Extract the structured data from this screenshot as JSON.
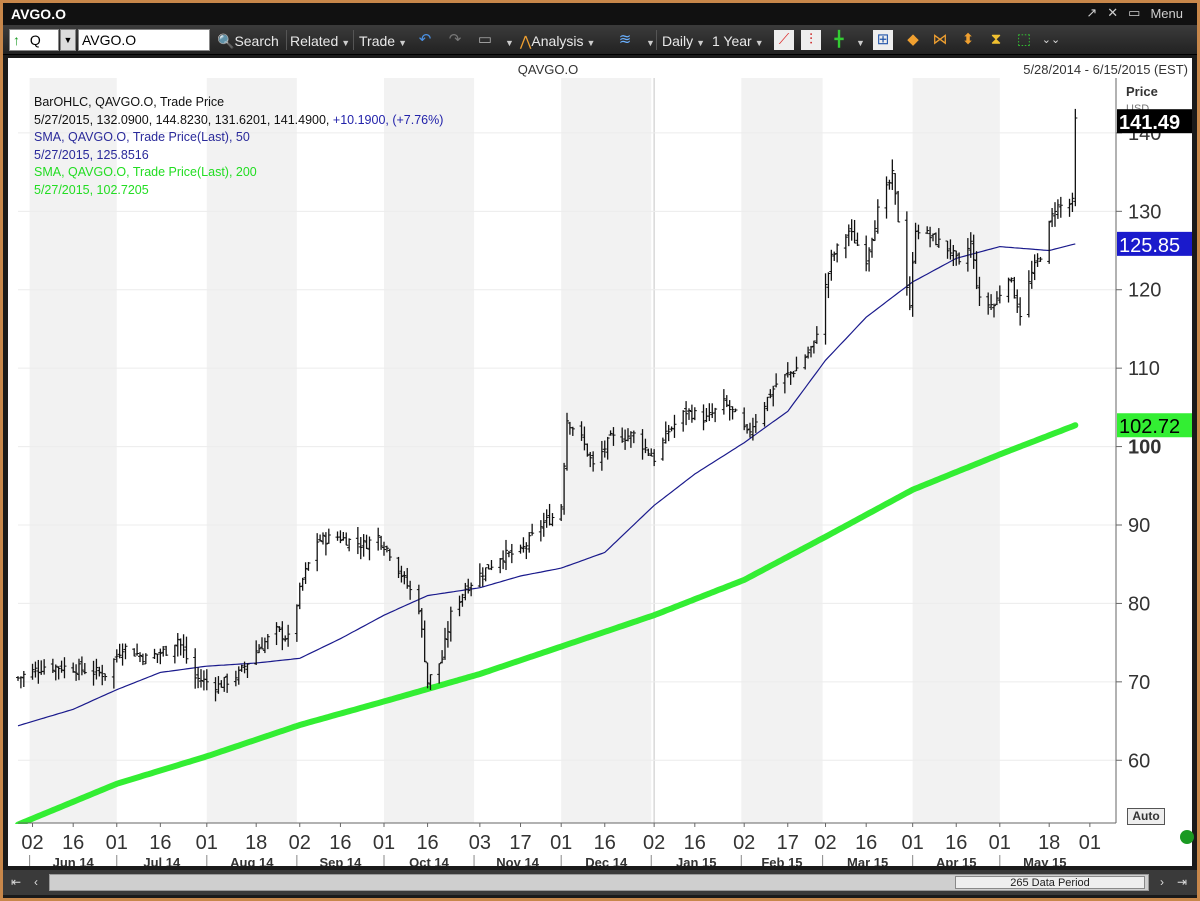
{
  "window": {
    "title": "AVGO.O",
    "controls": {
      "menu_label": "Menu"
    }
  },
  "toolbar": {
    "mode_letter": "Q",
    "symbol_value": "AVGO.O",
    "search_label": "Search",
    "related_label": "Related",
    "trade_label": "Trade",
    "analysis_label": "Analysis",
    "interval_label": "Daily",
    "range_label": "1 Year",
    "icons": [
      "up-arrow-icon",
      "search-icon",
      "undo-icon",
      "redo-icon",
      "folder-icon",
      "analysis-icon",
      "wave-icon",
      "line-chart-icon",
      "candle-chart-icon",
      "crosshair-icon",
      "add-chart-icon",
      "pan-left-right-icon",
      "zoom-in-icon",
      "zoom-out-icon",
      "fit-icon",
      "select-icon",
      "more-icon"
    ]
  },
  "chart_header": {
    "symbol": "QAVGO.O",
    "date_range": "5/28/2014 - 6/15/2015 (EST)"
  },
  "legend": {
    "line1": "BarOHLC, QAVGO.O, Trade Price",
    "line2_values": "5/27/2015, 132.0900, 144.8230, 131.6201, 141.4900,",
    "line2_change": "+10.1900, (+7.76%)",
    "sma50_label": "SMA, QAVGO.O, Trade Price(Last),  50",
    "sma50_value": "5/27/2015, 125.8516",
    "sma200_label": "SMA, QAVGO.O, Trade Price(Last),  200",
    "sma200_value": "5/27/2015, 102.7205"
  },
  "axis": {
    "price_header": "Price",
    "price_unit": "USD",
    "auto_label": "Auto",
    "range_label": "265 Data Period"
  },
  "colors": {
    "sma50": "#1a1a8c",
    "sma200": "#33ee33",
    "price_tag_last": "#000000",
    "price_tag_sma50": "#1a1acc",
    "price_tag_sma200": "#33ee33",
    "shade": "#f2f2f2"
  },
  "chart_data": {
    "type": "bar",
    "ylim": [
      52,
      147
    ],
    "yticks": [
      60,
      70,
      80,
      90,
      100,
      110,
      120,
      130,
      140
    ],
    "xlim": [
      "2014-05-28",
      "2015-06-10"
    ],
    "day_ticks": [
      {
        "date": "2014-06-02",
        "label": "02"
      },
      {
        "date": "2014-06-16",
        "label": "16"
      },
      {
        "date": "2014-07-01",
        "label": "01"
      },
      {
        "date": "2014-07-16",
        "label": "16"
      },
      {
        "date": "2014-08-01",
        "label": "01"
      },
      {
        "date": "2014-08-18",
        "label": "18"
      },
      {
        "date": "2014-09-02",
        "label": "02"
      },
      {
        "date": "2014-09-16",
        "label": "16"
      },
      {
        "date": "2014-10-01",
        "label": "01"
      },
      {
        "date": "2014-10-16",
        "label": "16"
      },
      {
        "date": "2014-11-03",
        "label": "03"
      },
      {
        "date": "2014-11-17",
        "label": "17"
      },
      {
        "date": "2014-12-01",
        "label": "01"
      },
      {
        "date": "2014-12-16",
        "label": "16"
      },
      {
        "date": "2015-01-02",
        "label": "02"
      },
      {
        "date": "2015-01-16",
        "label": "16"
      },
      {
        "date": "2015-02-02",
        "label": "02"
      },
      {
        "date": "2015-02-17",
        "label": "17"
      },
      {
        "date": "2015-03-02",
        "label": "02"
      },
      {
        "date": "2015-03-16",
        "label": "16"
      },
      {
        "date": "2015-04-01",
        "label": "01"
      },
      {
        "date": "2015-04-16",
        "label": "16"
      },
      {
        "date": "2015-05-01",
        "label": "01"
      },
      {
        "date": "2015-05-18",
        "label": "18"
      },
      {
        "date": "2015-06-01",
        "label": "01"
      }
    ],
    "months": [
      {
        "start": "2014-06-01",
        "label": "Jun 14"
      },
      {
        "start": "2014-07-01",
        "label": "Jul 14"
      },
      {
        "start": "2014-08-01",
        "label": "Aug 14"
      },
      {
        "start": "2014-09-01",
        "label": "Sep 14"
      },
      {
        "start": "2014-10-01",
        "label": "Oct 14"
      },
      {
        "start": "2014-11-01",
        "label": "Nov 14"
      },
      {
        "start": "2014-12-01",
        "label": "Dec 14"
      },
      {
        "start": "2015-01-01",
        "label": "Jan 15"
      },
      {
        "start": "2015-02-01",
        "label": "Feb 15"
      },
      {
        "start": "2015-03-01",
        "label": "Mar 15"
      },
      {
        "start": "2015-04-01",
        "label": "Apr 15"
      },
      {
        "start": "2015-05-01",
        "label": "May 15"
      }
    ],
    "close_anchors": [
      [
        "2014-05-28",
        70.5
      ],
      [
        "2014-06-06",
        72.0
      ],
      [
        "2014-06-16",
        71.8
      ],
      [
        "2014-06-27",
        71.0
      ],
      [
        "2014-07-03",
        74.5
      ],
      [
        "2014-07-11",
        73.0
      ],
      [
        "2014-07-18",
        74.0
      ],
      [
        "2014-07-22",
        75.5
      ],
      [
        "2014-07-28",
        70.5
      ],
      [
        "2014-08-05",
        69.5
      ],
      [
        "2014-08-12",
        71.0
      ],
      [
        "2014-08-18",
        74.0
      ],
      [
        "2014-08-25",
        76.5
      ],
      [
        "2014-08-29",
        75.5
      ],
      [
        "2014-09-03",
        83.0
      ],
      [
        "2014-09-08",
        88.0
      ],
      [
        "2014-09-15",
        88.5
      ],
      [
        "2014-09-19",
        88.0
      ],
      [
        "2014-09-24",
        87.5
      ],
      [
        "2014-09-29",
        88.5
      ],
      [
        "2014-10-03",
        86.5
      ],
      [
        "2014-10-08",
        83.0
      ],
      [
        "2014-10-13",
        79.5
      ],
      [
        "2014-10-16",
        70.0
      ],
      [
        "2014-10-21",
        73.0
      ],
      [
        "2014-10-24",
        78.5
      ],
      [
        "2014-10-29",
        82.0
      ],
      [
        "2014-11-04",
        84.0
      ],
      [
        "2014-11-10",
        86.0
      ],
      [
        "2014-11-17",
        86.5
      ],
      [
        "2014-11-24",
        90.0
      ],
      [
        "2014-11-28",
        91.0
      ],
      [
        "2014-12-01",
        92.5
      ],
      [
        "2014-12-03",
        103.5
      ],
      [
        "2014-12-08",
        101.0
      ],
      [
        "2014-12-12",
        97.5
      ],
      [
        "2014-12-18",
        101.0
      ],
      [
        "2014-12-26",
        101.5
      ],
      [
        "2015-01-02",
        98.5
      ],
      [
        "2015-01-07",
        102.0
      ],
      [
        "2015-01-13",
        104.5
      ],
      [
        "2015-01-20",
        103.5
      ],
      [
        "2015-01-26",
        105.5
      ],
      [
        "2015-01-30",
        104.0
      ],
      [
        "2015-02-03",
        101.5
      ],
      [
        "2015-02-09",
        105.5
      ],
      [
        "2015-02-13",
        108.0
      ],
      [
        "2015-02-20",
        110.0
      ],
      [
        "2015-02-26",
        113.0
      ],
      [
        "2015-03-04",
        124.0
      ],
      [
        "2015-03-10",
        127.5
      ],
      [
        "2015-03-16",
        124.0
      ],
      [
        "2015-03-20",
        130.0
      ],
      [
        "2015-03-25",
        134.5
      ],
      [
        "2015-03-27",
        129.0
      ],
      [
        "2015-03-31",
        118.0
      ],
      [
        "2015-04-02",
        128.0
      ],
      [
        "2015-04-08",
        126.5
      ],
      [
        "2015-04-14",
        125.0
      ],
      [
        "2015-04-17",
        123.0
      ],
      [
        "2015-04-21",
        126.0
      ],
      [
        "2015-04-24",
        118.5
      ],
      [
        "2015-04-29",
        118.0
      ],
      [
        "2015-05-04",
        122.0
      ],
      [
        "2015-05-08",
        117.0
      ],
      [
        "2015-05-12",
        122.0
      ],
      [
        "2015-05-15",
        124.5
      ],
      [
        "2015-05-20",
        130.5
      ],
      [
        "2015-05-26",
        131.0
      ],
      [
        "2015-05-27",
        141.49
      ]
    ],
    "sma50_anchors": [
      [
        "2014-05-28",
        64.4
      ],
      [
        "2014-06-16",
        66.5
      ],
      [
        "2014-07-01",
        69.0
      ],
      [
        "2014-07-16",
        71.2
      ],
      [
        "2014-08-01",
        72.0
      ],
      [
        "2014-08-18",
        72.4
      ],
      [
        "2014-09-02",
        73.0
      ],
      [
        "2014-09-16",
        75.5
      ],
      [
        "2014-10-01",
        78.5
      ],
      [
        "2014-10-16",
        81.0
      ],
      [
        "2014-11-03",
        82.0
      ],
      [
        "2014-11-17",
        83.5
      ],
      [
        "2014-12-01",
        84.5
      ],
      [
        "2014-12-16",
        86.5
      ],
      [
        "2015-01-02",
        92.5
      ],
      [
        "2015-01-16",
        96.5
      ],
      [
        "2015-02-02",
        100.5
      ],
      [
        "2015-02-17",
        104.5
      ],
      [
        "2015-03-02",
        111.0
      ],
      [
        "2015-03-16",
        116.5
      ],
      [
        "2015-04-01",
        121.0
      ],
      [
        "2015-04-16",
        124.0
      ],
      [
        "2015-05-01",
        125.5
      ],
      [
        "2015-05-18",
        125.0
      ],
      [
        "2015-05-27",
        125.85
      ]
    ],
    "sma200_anchors": [
      [
        "2014-05-28",
        51.8
      ],
      [
        "2014-07-01",
        57.0
      ],
      [
        "2014-08-01",
        60.5
      ],
      [
        "2014-09-02",
        64.5
      ],
      [
        "2014-10-01",
        67.5
      ],
      [
        "2014-11-03",
        71.0
      ],
      [
        "2014-12-01",
        74.5
      ],
      [
        "2015-01-02",
        78.5
      ],
      [
        "2015-02-02",
        83.0
      ],
      [
        "2015-03-02",
        88.5
      ],
      [
        "2015-04-01",
        94.5
      ],
      [
        "2015-05-01",
        99.0
      ],
      [
        "2015-05-27",
        102.72
      ]
    ],
    "price_tags": [
      {
        "value": 141.49,
        "label": "141.49"
      },
      {
        "value": 125.85,
        "label": "125.85"
      },
      {
        "value": 102.72,
        "label": "102.72"
      }
    ]
  }
}
